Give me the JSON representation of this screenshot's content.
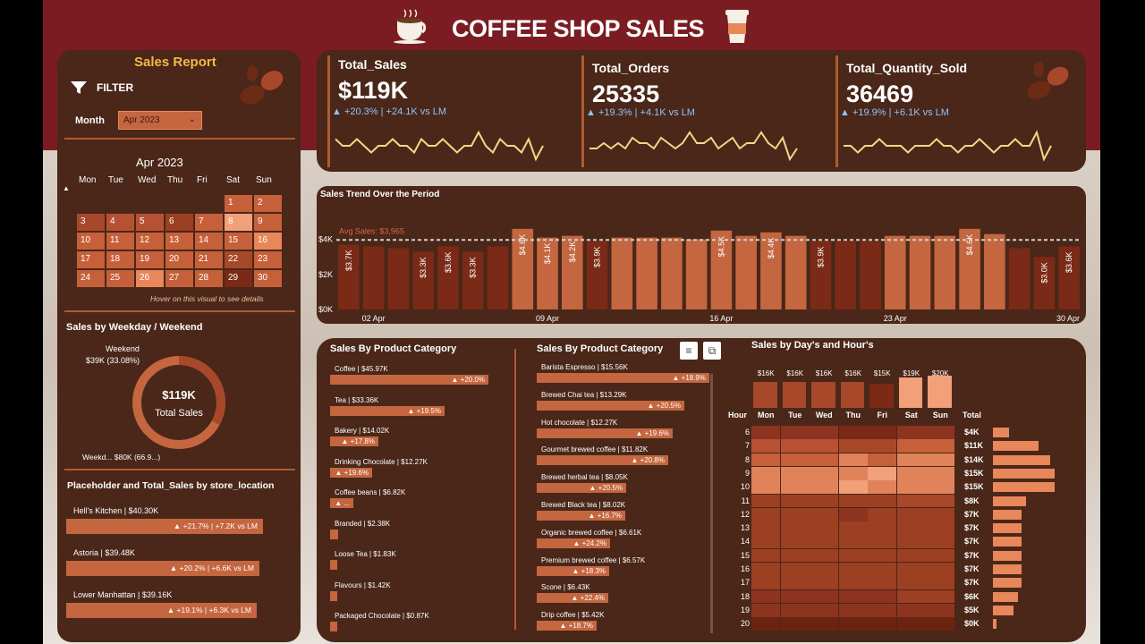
{
  "header": {
    "title": "COFFEE SHOP SALES"
  },
  "sidebar": {
    "title": "Sales Report",
    "filter_label": "FILTER",
    "month_label": "Month",
    "month_value": "Apr 2023",
    "calendar_title": "Apr 2023",
    "weekdays": [
      "Mon",
      "Tue",
      "Wed",
      "Thu",
      "Fri",
      "Sat",
      "Sun"
    ],
    "calendar_hint": "Hover on this visual to see details",
    "days": [
      {
        "d": "1",
        "w": 5,
        "r": 0,
        "shade": "#c6603a"
      },
      {
        "d": "2",
        "w": 6,
        "r": 0,
        "shade": "#c6603a"
      },
      {
        "d": "3",
        "w": 0,
        "r": 1,
        "shade": "#a8482a"
      },
      {
        "d": "4",
        "w": 1,
        "r": 1,
        "shade": "#b65233"
      },
      {
        "d": "5",
        "w": 2,
        "r": 1,
        "shade": "#b65233"
      },
      {
        "d": "6",
        "w": 3,
        "r": 1,
        "shade": "#9c3f22"
      },
      {
        "d": "7",
        "w": 4,
        "r": 1,
        "shade": "#c6603a"
      },
      {
        "d": "8",
        "w": 5,
        "r": 1,
        "shade": "#f2a07a"
      },
      {
        "d": "9",
        "w": 6,
        "r": 1,
        "shade": "#c6603a"
      },
      {
        "d": "10",
        "w": 0,
        "r": 2,
        "shade": "#c6603a"
      },
      {
        "d": "11",
        "w": 1,
        "r": 2,
        "shade": "#c6603a"
      },
      {
        "d": "12",
        "w": 2,
        "r": 2,
        "shade": "#c6603a"
      },
      {
        "d": "13",
        "w": 3,
        "r": 2,
        "shade": "#c6603a"
      },
      {
        "d": "14",
        "w": 4,
        "r": 2,
        "shade": "#c6603a"
      },
      {
        "d": "15",
        "w": 5,
        "r": 2,
        "shade": "#c6603a"
      },
      {
        "d": "16",
        "w": 6,
        "r": 2,
        "shade": "#e8875a"
      },
      {
        "d": "17",
        "w": 0,
        "r": 3,
        "shade": "#c6603a"
      },
      {
        "d": "18",
        "w": 1,
        "r": 3,
        "shade": "#c6603a"
      },
      {
        "d": "19",
        "w": 2,
        "r": 3,
        "shade": "#c6603a"
      },
      {
        "d": "20",
        "w": 3,
        "r": 3,
        "shade": "#c6603a"
      },
      {
        "d": "21",
        "w": 4,
        "r": 3,
        "shade": "#c6603a"
      },
      {
        "d": "22",
        "w": 5,
        "r": 3,
        "shade": "#a8482a"
      },
      {
        "d": "23",
        "w": 6,
        "r": 3,
        "shade": "#c6603a"
      },
      {
        "d": "24",
        "w": 0,
        "r": 4,
        "shade": "#c6603a"
      },
      {
        "d": "25",
        "w": 1,
        "r": 4,
        "shade": "#c6603a"
      },
      {
        "d": "26",
        "w": 2,
        "r": 4,
        "shade": "#e8875a"
      },
      {
        "d": "27",
        "w": 3,
        "r": 4,
        "shade": "#c6603a"
      },
      {
        "d": "28",
        "w": 4,
        "r": 4,
        "shade": "#c6603a"
      },
      {
        "d": "29",
        "w": 5,
        "r": 4,
        "shade": "#7a2a16"
      },
      {
        "d": "30",
        "w": 6,
        "r": 4,
        "shade": "#c6603a"
      }
    ],
    "weekday_title": "Sales by Weekday / Weekend",
    "donut": {
      "center_value": "$119K",
      "center_label": "Total Sales",
      "weekend_label": "Weekend",
      "weekend_value": "$39K (33.08%)",
      "weekday_value": "Weekd... $80K (66.9...)",
      "weekend_share": 0.3308
    },
    "store_title": "Placeholder and Total_Sales by store_location",
    "stores": [
      {
        "name": "Hell's Kitchen | $40.30K",
        "delta": "▲ +21.7% | +7.2K vs LM",
        "frac": 1.0
      },
      {
        "name": "Astoria | $39.48K",
        "delta": "▲ +20.2% | +6.6K vs LM",
        "frac": 0.98
      },
      {
        "name": "Lower Manhattan | $39.16K",
        "delta": "▲ +19.1% | +6.3K vs LM",
        "frac": 0.97
      }
    ]
  },
  "kpis": [
    {
      "label": "Total_Sales",
      "value": "$119K",
      "sub": "▲ +20.3% | +24.1K vs LM",
      "spark": [
        5,
        4,
        4,
        5,
        4,
        3,
        4,
        4,
        5,
        4,
        4,
        3,
        5,
        4,
        4,
        5,
        4,
        3,
        4,
        4,
        6,
        4,
        3,
        5,
        4,
        4,
        3,
        5,
        2,
        4
      ]
    },
    {
      "label": "Total_Orders",
      "value": "25335",
      "sub": "▲ +19.3% | +4.1K vs LM",
      "spark": [
        3,
        3,
        4,
        3,
        4,
        3,
        5,
        4,
        4,
        3,
        5,
        4,
        3,
        4,
        6,
        4,
        4,
        5,
        3,
        4,
        5,
        3,
        4,
        4,
        6,
        4,
        3,
        5,
        1,
        3
      ]
    },
    {
      "label": "Total_Quantity_Sold",
      "value": "36469",
      "sub": "▲ +19.9% | +6.1K vs LM",
      "spark": [
        4,
        4,
        3,
        4,
        4,
        5,
        4,
        4,
        4,
        3,
        4,
        4,
        4,
        5,
        4,
        4,
        3,
        4,
        4,
        5,
        4,
        3,
        4,
        4,
        5,
        4,
        4,
        6,
        2,
        4
      ]
    }
  ],
  "trend": {
    "title": "Sales Trend Over the Period",
    "avg_label": "Avg Sales: $3,965"
  },
  "chart_data": [
    {
      "type": "bar",
      "title": "Sales Trend Over the Period",
      "ylim": [
        0,
        5000
      ],
      "yticks": [
        "$0K",
        "$2K",
        "$4K"
      ],
      "xticks": [
        "02 Apr",
        "09 Apr",
        "16 Apr",
        "23 Apr",
        "30 Apr"
      ],
      "average": 3965,
      "x": [
        "1",
        "2",
        "3",
        "4",
        "5",
        "6",
        "7",
        "8",
        "9",
        "10",
        "11",
        "12",
        "13",
        "14",
        "15",
        "16",
        "17",
        "18",
        "19",
        "20",
        "21",
        "22",
        "23",
        "24",
        "25",
        "26",
        "27",
        "28",
        "29",
        "30"
      ],
      "values": [
        3700,
        3600,
        3500,
        3300,
        3600,
        3300,
        3600,
        4600,
        4100,
        4200,
        3900,
        4100,
        4100,
        4100,
        4000,
        4500,
        4200,
        4400,
        4200,
        3900,
        3900,
        3900,
        4200,
        4200,
        4200,
        4600,
        4300,
        3500,
        3000,
        3600
      ],
      "data_labels": [
        "$3.7K",
        "",
        "",
        "$3.3K",
        "$3.6K",
        "$3.3K",
        "",
        "$4.6K",
        "$4.1K",
        "$4.2K",
        "$3.9K",
        "",
        "",
        "",
        "",
        "$4.5K",
        "",
        "$4.4K",
        "",
        "$3.9K",
        "",
        "",
        "",
        "",
        "",
        "$4.6K",
        "",
        "",
        "$3.0K",
        "$3.6K"
      ]
    },
    {
      "type": "bar",
      "title": "Sales By Product Category",
      "orientation": "horizontal",
      "categories": [
        "Coffee",
        "Tea",
        "Bakery",
        "Drinking Chocolate",
        "Coffee beans",
        "Branded",
        "Loose Tea",
        "Flavours",
        "Packaged Chocolate"
      ],
      "values": [
        45.97,
        33.36,
        14.02,
        12.27,
        6.82,
        2.38,
        1.83,
        1.42,
        0.87
      ],
      "labels": [
        "Coffee | $45.97K",
        "Tea | $33.36K",
        "Bakery | $14.02K",
        "Drinking Chocolate | $12.27K",
        "Coffee beans | $6.82K",
        "Branded | $2.38K",
        "Loose Tea | $1.83K",
        "Flavours | $1.42K",
        "Packaged Chocolate | $0.87K"
      ],
      "deltas": [
        "▲ +20.0%",
        "▲ +19.5%",
        "▲ +17.8%",
        "▲ +19.6%",
        "▲ ...",
        "",
        "",
        "",
        ""
      ]
    },
    {
      "type": "bar",
      "title": "Sales By Product Category",
      "orientation": "horizontal",
      "categories": [
        "Barista Espresso",
        "Brewed Chai tea",
        "Hot chocolate",
        "Gourmet brewed coffee",
        "Brewed herbal tea",
        "Brewed Black tea",
        "Organic brewed coffee",
        "Premium brewed coffee",
        "Scone",
        "Drip coffee"
      ],
      "values": [
        15.56,
        13.29,
        12.27,
        11.82,
        8.05,
        8.02,
        6.61,
        6.57,
        6.43,
        5.42
      ],
      "labels": [
        "Barista Espresso | $15.56K",
        "Brewed Chai tea | $13.29K",
        "Hot chocolate | $12.27K",
        "Gourmet brewed coffee | $11.82K",
        "Brewed herbal tea | $8.05K",
        "Brewed Black tea | $8.02K",
        "Organic brewed coffee | $6.61K",
        "Premium brewed coffee | $6.57K",
        "Scone | $6.43K",
        "Drip coffee | $5.42K"
      ],
      "deltas": [
        "▲ +18.9%",
        "▲ +20.5%",
        "▲ +19.6%",
        "▲ +20.8%",
        "▲ +20.5%",
        "▲ +16.7%",
        "▲ +24.2%",
        "▲ +18.3%",
        "▲ +22.4%",
        "▲ +18.7%"
      ]
    },
    {
      "type": "heatmap",
      "title": "Sales by Day's and Hour's",
      "x": [
        "Mon",
        "Tue",
        "Wed",
        "Thu",
        "Fri",
        "Sat",
        "Sun"
      ],
      "y": [
        "6",
        "7",
        "8",
        "9",
        "10",
        "11",
        "12",
        "13",
        "14",
        "15",
        "16",
        "17",
        "18",
        "19",
        "20"
      ],
      "day_totals": [
        "$16K",
        "$16K",
        "$16K",
        "$16K",
        "$15K",
        "$19K",
        "$20K"
      ],
      "day_values": [
        16,
        16,
        16,
        16,
        15,
        19,
        20
      ],
      "hour_totals": [
        "$4K",
        "$11K",
        "$14K",
        "$15K",
        "$15K",
        "$8K",
        "$7K",
        "$7K",
        "$7K",
        "$7K",
        "$7K",
        "$7K",
        "$6K",
        "$5K",
        "$0K"
      ],
      "hour_values": [
        4,
        11,
        14,
        15,
        15,
        8,
        7,
        7,
        7,
        7,
        7,
        7,
        6,
        5,
        0.4
      ],
      "values": [
        [
          3,
          3,
          3,
          2,
          2,
          3,
          3
        ],
        [
          6,
          6,
          6,
          5,
          5,
          7,
          7
        ],
        [
          7,
          7,
          7,
          8,
          7,
          8,
          8
        ],
        [
          8,
          8,
          8,
          8,
          9,
          8,
          8
        ],
        [
          8,
          8,
          8,
          9,
          8,
          8,
          8
        ],
        [
          4,
          4,
          4,
          4,
          4,
          5,
          5
        ],
        [
          4,
          4,
          4,
          3,
          4,
          4,
          4
        ],
        [
          4,
          4,
          4,
          4,
          4,
          4,
          4
        ],
        [
          4,
          4,
          4,
          4,
          4,
          4,
          4
        ],
        [
          4,
          4,
          4,
          4,
          4,
          4,
          4
        ],
        [
          4,
          4,
          4,
          4,
          4,
          4,
          4
        ],
        [
          4,
          4,
          4,
          4,
          4,
          4,
          4
        ],
        [
          3,
          3,
          3,
          3,
          3,
          4,
          4
        ],
        [
          3,
          3,
          3,
          3,
          3,
          3,
          3
        ],
        [
          1,
          1,
          1,
          1,
          1,
          1,
          1
        ]
      ],
      "header_hour": "Hour",
      "header_total": "Total"
    }
  ],
  "colors": {
    "panel": "#4a2718",
    "accent": "#c4663f",
    "header": "#7a1c22",
    "light": "#f2a07a",
    "dark": "#7a2a16"
  }
}
